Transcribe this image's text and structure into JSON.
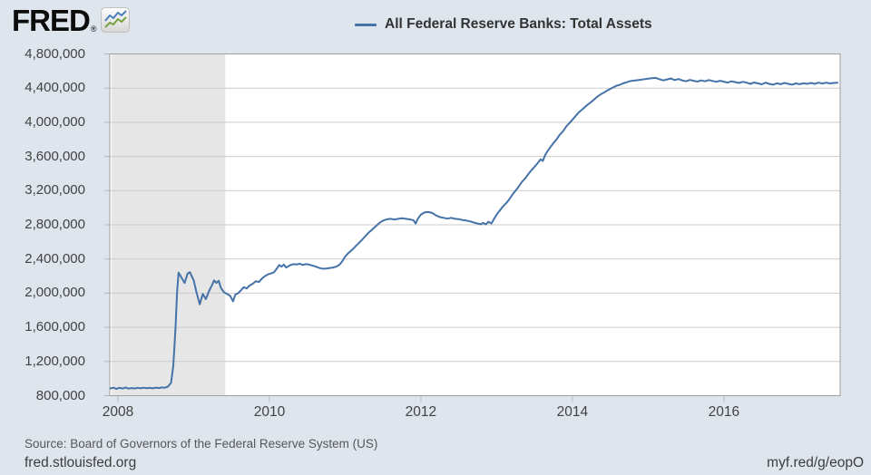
{
  "header": {
    "logo_text": "FRED",
    "logo_reg": "®"
  },
  "legend": {
    "label": "All Federal Reserve Banks: Total Assets"
  },
  "footer": {
    "source": "Source: Board of Governors of the Federal Reserve System (US)",
    "site": "fred.stlouisfed.org",
    "shortlink": "myf.red/g/eopO"
  },
  "chart_data": {
    "type": "line",
    "title": "All Federal Reserve Banks: Total Assets",
    "legend_position": "top-center",
    "grid": true,
    "x_range": [
      2007.892,
      2017.535
    ],
    "y_range": [
      800000,
      4800000
    ],
    "x_ticks": [
      {
        "value": 2008,
        "label": "2008"
      },
      {
        "value": 2010,
        "label": "2010"
      },
      {
        "value": 2012,
        "label": "2012"
      },
      {
        "value": 2014,
        "label": "2014"
      },
      {
        "value": 2016,
        "label": "2016"
      }
    ],
    "y_ticks": [
      {
        "value": 800000,
        "label": "800,000"
      },
      {
        "value": 1200000,
        "label": "1,200,000"
      },
      {
        "value": 1600000,
        "label": "1,600,000"
      },
      {
        "value": 2000000,
        "label": "2,000,000"
      },
      {
        "value": 2400000,
        "label": "2,400,000"
      },
      {
        "value": 2800000,
        "label": "2,800,000"
      },
      {
        "value": 3200000,
        "label": "3,200,000"
      },
      {
        "value": 3600000,
        "label": "3,600,000"
      },
      {
        "value": 4000000,
        "label": "4,000,000"
      },
      {
        "value": 4400000,
        "label": "4,400,000"
      },
      {
        "value": 4800000,
        "label": "4,800,000"
      }
    ],
    "recession_bands": [
      [
        2007.917,
        2009.417
      ]
    ],
    "colors": {
      "background": "#dee5ec",
      "plot_background": "#ffffff",
      "recession_band": "#e6e6e6",
      "gridline": "#cbcbcb",
      "border": "#9e9e9e",
      "tick": "#aebbc6",
      "line": "#4572a7"
    },
    "series": [
      {
        "name": "All Federal Reserve Banks: Total Assets",
        "color": "#4572a7",
        "points": [
          [
            2007.9,
            885000
          ],
          [
            2007.94,
            893000
          ],
          [
            2007.98,
            880000
          ],
          [
            2008.02,
            892000
          ],
          [
            2008.06,
            884000
          ],
          [
            2008.1,
            896000
          ],
          [
            2008.14,
            883000
          ],
          [
            2008.18,
            889000
          ],
          [
            2008.22,
            885000
          ],
          [
            2008.26,
            892000
          ],
          [
            2008.3,
            886000
          ],
          [
            2008.34,
            893000
          ],
          [
            2008.38,
            887000
          ],
          [
            2008.42,
            891000
          ],
          [
            2008.46,
            886000
          ],
          [
            2008.5,
            894000
          ],
          [
            2008.54,
            889000
          ],
          [
            2008.58,
            897000
          ],
          [
            2008.62,
            893000
          ],
          [
            2008.66,
            906000
          ],
          [
            2008.7,
            950000
          ],
          [
            2008.73,
            1150000
          ],
          [
            2008.76,
            1600000
          ],
          [
            2008.78,
            2000000
          ],
          [
            2008.8,
            2240000
          ],
          [
            2008.84,
            2180000
          ],
          [
            2008.88,
            2120000
          ],
          [
            2008.92,
            2230000
          ],
          [
            2008.95,
            2245000
          ],
          [
            2009.0,
            2150000
          ],
          [
            2009.04,
            2000000
          ],
          [
            2009.08,
            1870000
          ],
          [
            2009.12,
            1990000
          ],
          [
            2009.16,
            1930000
          ],
          [
            2009.2,
            2020000
          ],
          [
            2009.24,
            2090000
          ],
          [
            2009.27,
            2150000
          ],
          [
            2009.3,
            2120000
          ],
          [
            2009.33,
            2145000
          ],
          [
            2009.36,
            2060000
          ],
          [
            2009.4,
            2010000
          ],
          [
            2009.44,
            1990000
          ],
          [
            2009.48,
            1970000
          ],
          [
            2009.52,
            1905000
          ],
          [
            2009.55,
            1985000
          ],
          [
            2009.58,
            1995000
          ],
          [
            2009.62,
            2030000
          ],
          [
            2009.66,
            2070000
          ],
          [
            2009.7,
            2055000
          ],
          [
            2009.74,
            2090000
          ],
          [
            2009.78,
            2110000
          ],
          [
            2009.82,
            2140000
          ],
          [
            2009.86,
            2130000
          ],
          [
            2009.9,
            2170000
          ],
          [
            2009.94,
            2200000
          ],
          [
            2009.98,
            2220000
          ],
          [
            2010.02,
            2230000
          ],
          [
            2010.06,
            2245000
          ],
          [
            2010.1,
            2290000
          ],
          [
            2010.13,
            2330000
          ],
          [
            2010.16,
            2310000
          ],
          [
            2010.19,
            2335000
          ],
          [
            2010.22,
            2300000
          ],
          [
            2010.25,
            2315000
          ],
          [
            2010.28,
            2330000
          ],
          [
            2010.32,
            2340000
          ],
          [
            2010.36,
            2335000
          ],
          [
            2010.4,
            2345000
          ],
          [
            2010.44,
            2330000
          ],
          [
            2010.48,
            2340000
          ],
          [
            2010.52,
            2335000
          ],
          [
            2010.56,
            2325000
          ],
          [
            2010.6,
            2315000
          ],
          [
            2010.64,
            2300000
          ],
          [
            2010.68,
            2290000
          ],
          [
            2010.72,
            2285000
          ],
          [
            2010.76,
            2290000
          ],
          [
            2010.8,
            2295000
          ],
          [
            2010.84,
            2300000
          ],
          [
            2010.88,
            2310000
          ],
          [
            2010.92,
            2330000
          ],
          [
            2010.96,
            2370000
          ],
          [
            2011.0,
            2430000
          ],
          [
            2011.05,
            2475000
          ],
          [
            2011.1,
            2515000
          ],
          [
            2011.15,
            2560000
          ],
          [
            2011.2,
            2605000
          ],
          [
            2011.25,
            2650000
          ],
          [
            2011.3,
            2700000
          ],
          [
            2011.35,
            2740000
          ],
          [
            2011.4,
            2780000
          ],
          [
            2011.45,
            2820000
          ],
          [
            2011.5,
            2850000
          ],
          [
            2011.55,
            2865000
          ],
          [
            2011.6,
            2870000
          ],
          [
            2011.65,
            2862000
          ],
          [
            2011.7,
            2870000
          ],
          [
            2011.75,
            2876000
          ],
          [
            2011.8,
            2870000
          ],
          [
            2011.85,
            2864000
          ],
          [
            2011.9,
            2855000
          ],
          [
            2011.93,
            2815000
          ],
          [
            2011.96,
            2872000
          ],
          [
            2012.0,
            2920000
          ],
          [
            2012.05,
            2945000
          ],
          [
            2012.1,
            2950000
          ],
          [
            2012.15,
            2938000
          ],
          [
            2012.2,
            2910000
          ],
          [
            2012.25,
            2890000
          ],
          [
            2012.3,
            2882000
          ],
          [
            2012.35,
            2872000
          ],
          [
            2012.4,
            2882000
          ],
          [
            2012.45,
            2870000
          ],
          [
            2012.5,
            2866000
          ],
          [
            2012.55,
            2856000
          ],
          [
            2012.6,
            2850000
          ],
          [
            2012.65,
            2840000
          ],
          [
            2012.7,
            2826000
          ],
          [
            2012.75,
            2815000
          ],
          [
            2012.79,
            2806000
          ],
          [
            2012.82,
            2822000
          ],
          [
            2012.86,
            2804000
          ],
          [
            2012.89,
            2836000
          ],
          [
            2012.93,
            2816000
          ],
          [
            2012.96,
            2860000
          ],
          [
            2013.0,
            2920000
          ],
          [
            2013.04,
            2965000
          ],
          [
            2013.08,
            3012000
          ],
          [
            2013.13,
            3058000
          ],
          [
            2013.17,
            3102000
          ],
          [
            2013.21,
            3155000
          ],
          [
            2013.25,
            3200000
          ],
          [
            2013.29,
            3246000
          ],
          [
            2013.33,
            3300000
          ],
          [
            2013.38,
            3346000
          ],
          [
            2013.42,
            3396000
          ],
          [
            2013.46,
            3440000
          ],
          [
            2013.5,
            3480000
          ],
          [
            2013.54,
            3520000
          ],
          [
            2013.58,
            3566000
          ],
          [
            2013.61,
            3548000
          ],
          [
            2013.64,
            3614000
          ],
          [
            2013.67,
            3660000
          ],
          [
            2013.71,
            3710000
          ],
          [
            2013.75,
            3756000
          ],
          [
            2013.79,
            3800000
          ],
          [
            2013.83,
            3850000
          ],
          [
            2013.88,
            3900000
          ],
          [
            2013.92,
            3952000
          ],
          [
            2013.96,
            3990000
          ],
          [
            2014.0,
            4030000
          ],
          [
            2014.04,
            4070000
          ],
          [
            2014.08,
            4112000
          ],
          [
            2014.13,
            4150000
          ],
          [
            2014.17,
            4182000
          ],
          [
            2014.21,
            4212000
          ],
          [
            2014.25,
            4240000
          ],
          [
            2014.29,
            4270000
          ],
          [
            2014.33,
            4300000
          ],
          [
            2014.38,
            4330000
          ],
          [
            2014.42,
            4350000
          ],
          [
            2014.46,
            4372000
          ],
          [
            2014.5,
            4390000
          ],
          [
            2014.54,
            4410000
          ],
          [
            2014.58,
            4426000
          ],
          [
            2014.63,
            4440000
          ],
          [
            2014.67,
            4456000
          ],
          [
            2014.71,
            4466000
          ],
          [
            2014.75,
            4480000
          ],
          [
            2014.79,
            4486000
          ],
          [
            2014.83,
            4490000
          ],
          [
            2014.88,
            4496000
          ],
          [
            2014.92,
            4500000
          ],
          [
            2014.96,
            4506000
          ],
          [
            2015.0,
            4510000
          ],
          [
            2015.05,
            4516000
          ],
          [
            2015.1,
            4520000
          ],
          [
            2015.15,
            4504000
          ],
          [
            2015.2,
            4490000
          ],
          [
            2015.25,
            4502000
          ],
          [
            2015.3,
            4512000
          ],
          [
            2015.35,
            4494000
          ],
          [
            2015.4,
            4506000
          ],
          [
            2015.45,
            4490000
          ],
          [
            2015.5,
            4480000
          ],
          [
            2015.55,
            4496000
          ],
          [
            2015.6,
            4486000
          ],
          [
            2015.65,
            4476000
          ],
          [
            2015.7,
            4490000
          ],
          [
            2015.75,
            4480000
          ],
          [
            2015.8,
            4494000
          ],
          [
            2015.85,
            4484000
          ],
          [
            2015.9,
            4474000
          ],
          [
            2015.95,
            4486000
          ],
          [
            2016.0,
            4475000
          ],
          [
            2016.05,
            4465000
          ],
          [
            2016.1,
            4480000
          ],
          [
            2016.15,
            4470000
          ],
          [
            2016.2,
            4460000
          ],
          [
            2016.25,
            4474000
          ],
          [
            2016.3,
            4464000
          ],
          [
            2016.35,
            4450000
          ],
          [
            2016.4,
            4466000
          ],
          [
            2016.45,
            4455000
          ],
          [
            2016.5,
            4445000
          ],
          [
            2016.55,
            4464000
          ],
          [
            2016.6,
            4450000
          ],
          [
            2016.65,
            4440000
          ],
          [
            2016.7,
            4456000
          ],
          [
            2016.75,
            4446000
          ],
          [
            2016.8,
            4460000
          ],
          [
            2016.85,
            4450000
          ],
          [
            2016.9,
            4440000
          ],
          [
            2016.95,
            4455000
          ],
          [
            2017.0,
            4446000
          ],
          [
            2017.05,
            4456000
          ],
          [
            2017.1,
            4450000
          ],
          [
            2017.15,
            4460000
          ],
          [
            2017.2,
            4450000
          ],
          [
            2017.25,
            4464000
          ],
          [
            2017.3,
            4454000
          ],
          [
            2017.35,
            4464000
          ],
          [
            2017.4,
            4455000
          ],
          [
            2017.45,
            4460000
          ],
          [
            2017.5,
            4464000
          ]
        ]
      }
    ]
  }
}
